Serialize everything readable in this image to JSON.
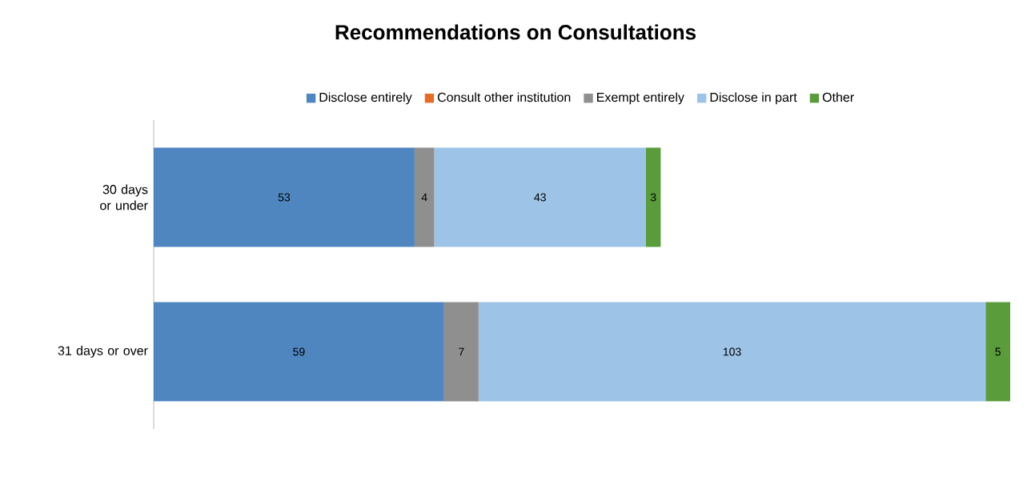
{
  "chart_data": {
    "type": "bar",
    "title": "Recommendations on Consultations",
    "orientation": "horizontal",
    "stacked": true,
    "data_labels": true,
    "tick_labels": "y",
    "legend": "top",
    "categories": [
      "30 days or under",
      "31 days or over"
    ],
    "series": [
      {
        "name": "Disclose entirely",
        "color": "#4f86c0",
        "values": [
          53,
          59
        ]
      },
      {
        "name": "Consult other institution",
        "color": "#e46c24",
        "values": [
          null,
          null
        ]
      },
      {
        "name": "Exempt entirely",
        "color": "#8f8f8f",
        "values": [
          4,
          7
        ]
      },
      {
        "name": "Disclose in part",
        "color": "#9dc3e6",
        "values": [
          43,
          103
        ]
      },
      {
        "name": "Other",
        "color": "#5a9b3c",
        "values": [
          3,
          5
        ]
      }
    ]
  }
}
